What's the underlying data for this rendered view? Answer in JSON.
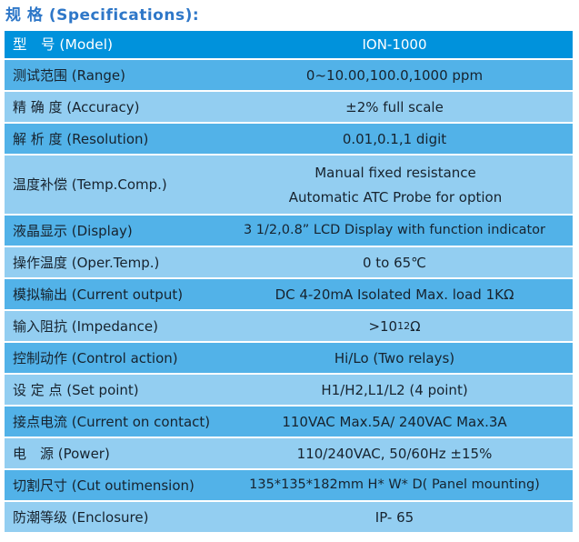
{
  "title": "规 格 (Specifications):",
  "colors": {
    "header_bg": "#0092dc",
    "row_medium_bg": "#52b2e8",
    "row_light_bg": "#93cef1",
    "title_text": "#2e77c8",
    "body_text": "#17232e",
    "header_text": "#ffffff"
  },
  "table": {
    "header": {
      "label": "型　号 (Model)",
      "value": "ION-1000"
    },
    "rows": [
      {
        "label": "测试范围 (Range)",
        "value": "0~10.00,100.0,1000 ppm"
      },
      {
        "label": "精 确 度 (Accuracy)",
        "value": "±2% full scale"
      },
      {
        "label": "解 析 度 (Resolution)",
        "value": "0.01,0.1,1 digit"
      },
      {
        "label": "温度补偿 (Temp.Comp.)",
        "lines": [
          "Manual fixed resistance",
          "Automatic ATC Probe for option"
        ]
      },
      {
        "label": "液晶显示 (Display)",
        "value": "3 1/2,0.8”  LCD Display with function indicator"
      },
      {
        "label": "操作温度 (Oper.Temp.)",
        "value": "0 to 65℃"
      },
      {
        "label": "模拟输出 (Current output)",
        "value": "DC 4-20mA Isolated Max. load 1KΩ"
      },
      {
        "label": "输入阻抗 (Impedance)",
        "value_base": ">10",
        "value_sup": "12",
        "value_unit": "Ω"
      },
      {
        "label": "控制动作 (Control action)",
        "value": "Hi/Lo (Two relays)"
      },
      {
        "label": "设 定 点  (Set point)",
        "value": "H1/H2,L1/L2 (4 point)"
      },
      {
        "label": "接点电流 (Current on contact)",
        "value": "110VAC Max.5A/ 240VAC Max.3A"
      },
      {
        "label": "电　源 (Power)",
        "value": "110/240VAC, 50/60Hz ±15%"
      },
      {
        "label": "切割尺寸 (Cut outimension)",
        "value": "135*135*182mm H* W* D( Panel mounting)"
      },
      {
        "label": "防潮等级 (Enclosure)",
        "value": "IP- 65"
      }
    ]
  }
}
